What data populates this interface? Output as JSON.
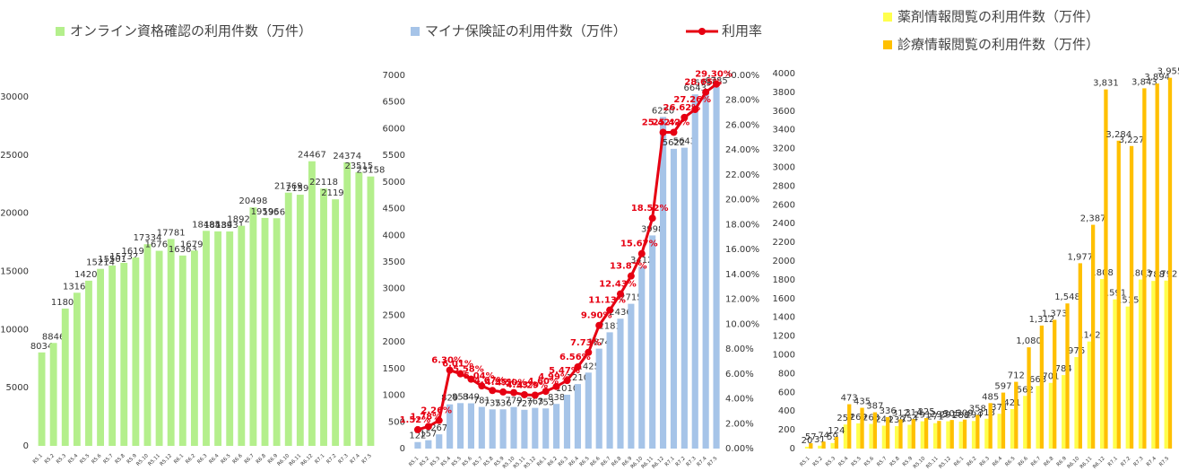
{
  "chart_data": [
    {
      "type": "bar",
      "categories": [
        "R5.1",
        "R5.2",
        "R5.3",
        "R5.4",
        "R5.5",
        "R5.6",
        "R5.7",
        "R5.8",
        "R5.9",
        "R5.10",
        "R5.11",
        "R5.12",
        "R6.1",
        "R6.2",
        "R6.3",
        "R6.4",
        "R6.5",
        "R6.6",
        "R6.7",
        "R6.8",
        "R6.9",
        "R6.10",
        "R6.11",
        "R6.12",
        "R7.1",
        "R7.2",
        "R7.3",
        "R7.4",
        "R7.5"
      ],
      "series": [
        {
          "name": "オンライン資格確認の利用件数（万件）",
          "color": "#b4ef8c",
          "values": [
            8034,
            8846,
            11804,
            13165,
            14200,
            15214,
            15501,
            15732,
            16198,
            17334,
            16768,
            17781,
            16363,
            16791,
            18485,
            18439,
            18431,
            18922,
            20498,
            19596,
            19569,
            21769,
            21590,
            24467,
            22118,
            21195,
            24374,
            23515,
            23158
          ]
        }
      ],
      "ylim": [
        0,
        30000
      ],
      "yticks": [
        0,
        5000,
        10000,
        15000,
        20000,
        25000,
        30000
      ],
      "grid": false
    },
    {
      "type": "bar",
      "categories": [
        "R5.1",
        "R5.2",
        "R5.3",
        "R5.4",
        "R5.5",
        "R5.6",
        "R5.7",
        "R5.8",
        "R5.9",
        "R5.10",
        "R5.11",
        "R5.12",
        "R6.1",
        "R6.2",
        "R6.3",
        "R6.4",
        "R6.5",
        "R6.6",
        "R6.7",
        "R6.8",
        "R6.9",
        "R6.10",
        "R6.11",
        "R6.12",
        "R7.1",
        "R7.2",
        "R7.3",
        "R7.4",
        "R7.5"
      ],
      "series": [
        {
          "name": "マイナ保険証の利用件数（万件）",
          "color": "#a6c4e8",
          "values": [
            122,
            157,
            267,
            829,
            853,
            849,
            781,
            735,
            736,
            779,
            727,
            763,
            753,
            838,
            1010,
            1210,
            1425,
            1874,
            2181,
            2436,
            2715,
            3412,
            3998,
            6220,
            5622,
            5643,
            6643,
            6737,
            6785
          ]
        },
        {
          "name": "利用率",
          "color": "#e60012",
          "type": "line",
          "axis": "y2",
          "values": [
            1.52,
            1.78,
            2.26,
            6.3,
            6.01,
            5.58,
            5.04,
            4.67,
            4.55,
            4.5,
            4.33,
            4.29,
            4.6,
            4.99,
            5.47,
            6.56,
            7.73,
            9.9,
            11.13,
            12.43,
            13.87,
            15.67,
            18.52,
            25.42,
            25.42,
            26.62,
            27.26,
            28.65,
            29.3
          ],
          "value_labels": [
            "1.52%",
            "1.78%",
            "2.26%",
            "6.30%",
            "6.01%",
            "5.58%",
            "5.04%",
            "4.67%",
            "4.55%",
            "4.50%",
            "4.33%",
            "4.29%",
            "4.60%",
            "4.99%",
            "5.47%",
            "6.56%",
            "7.73%",
            "9.90%",
            "11.13%",
            "12.43%",
            "13.87%",
            "15.67%",
            "18.52%",
            "25.42%",
            "25.42%",
            "26.62%",
            "27.26%",
            "28.65%",
            "29.30%"
          ]
        }
      ],
      "ylim": [
        0,
        7000
      ],
      "yticks": [
        0,
        500,
        1000,
        1500,
        2000,
        2500,
        3000,
        3500,
        4000,
        4500,
        5000,
        5500,
        6000,
        6500,
        7000
      ],
      "y2lim": [
        0,
        30
      ],
      "y2ticks": [
        {
          "value": 0,
          "label": "0.00%"
        },
        {
          "value": 2,
          "label": "2.00%"
        },
        {
          "value": 4,
          "label": "4.00%"
        },
        {
          "value": 6,
          "label": "6.00%"
        },
        {
          "value": 8,
          "label": "8.00%"
        },
        {
          "value": 10,
          "label": "10.00%"
        },
        {
          "value": 12,
          "label": "12.00%"
        },
        {
          "value": 14,
          "label": "14.00%"
        },
        {
          "value": 16,
          "label": "16.00%"
        },
        {
          "value": 18,
          "label": "18.00%"
        },
        {
          "value": 20,
          "label": "20.00%"
        },
        {
          "value": 22,
          "label": "22.00%"
        },
        {
          "value": 24,
          "label": "24.00%"
        },
        {
          "value": 26,
          "label": "26.00%"
        },
        {
          "value": 28,
          "label": "28.00%"
        },
        {
          "value": 30,
          "label": "30.00%"
        }
      ],
      "grid": false
    },
    {
      "type": "bar",
      "categories": [
        "R5.1",
        "R5.2",
        "R5.3",
        "R5.4",
        "R5.5",
        "R5.6",
        "R5.7",
        "R5.8",
        "R5.9",
        "R5.10",
        "R5.11",
        "R5.12",
        "R6.1",
        "R6.2",
        "R6.3",
        "R6.4",
        "R6.5",
        "R6.6",
        "R6.7",
        "R6.8",
        "R6.9",
        "R6.10",
        "R6.11",
        "R6.12",
        "R7.1",
        "R7.2",
        "R7.3",
        "R7.4",
        "R7.5"
      ],
      "series": [
        {
          "name": "薬剤情報閲覧の利用件数（万件）",
          "color": "#ffff4d",
          "values": [
            20,
            31,
            59,
            257,
            269,
            263,
            244,
            239,
            254,
            291,
            271,
            291,
            288,
            294,
            318,
            371,
            421,
            562,
            668,
            701,
            784,
            976,
            1142,
            1808,
            1591,
            1515,
            1803,
            1788,
            1792
          ]
        },
        {
          "name": "診療情報閲覧の利用件数（万件）",
          "color": "#ffc000",
          "values": [
            57,
            74,
            124,
            473,
            435,
            387,
            336,
            312,
            314,
            325,
            295,
            305,
            309,
            358,
            485,
            597,
            712,
            1080,
            1312,
            1373,
            1548,
            1977,
            2387,
            3831,
            3284,
            3227,
            3843,
            3894,
            3955
          ],
          "value_labels": [
            "57",
            "74",
            "124",
            "473",
            "435",
            "387",
            "336",
            "312",
            "314",
            "325",
            "295",
            "305",
            "309",
            "358",
            "485",
            "597",
            "712",
            "1,080",
            "1,312",
            "1,373",
            "1,548",
            "1,977",
            "2,387",
            "3,831",
            "3,284",
            "3,227",
            "3,843",
            "3,894",
            "3,955"
          ]
        }
      ],
      "ylim": [
        0,
        4000
      ],
      "yticks": [
        0,
        200,
        400,
        600,
        800,
        1000,
        1200,
        1400,
        1600,
        1800,
        2000,
        2200,
        2400,
        2600,
        2800,
        3000,
        3200,
        3400,
        3600,
        3800,
        4000
      ],
      "grid": false
    }
  ]
}
